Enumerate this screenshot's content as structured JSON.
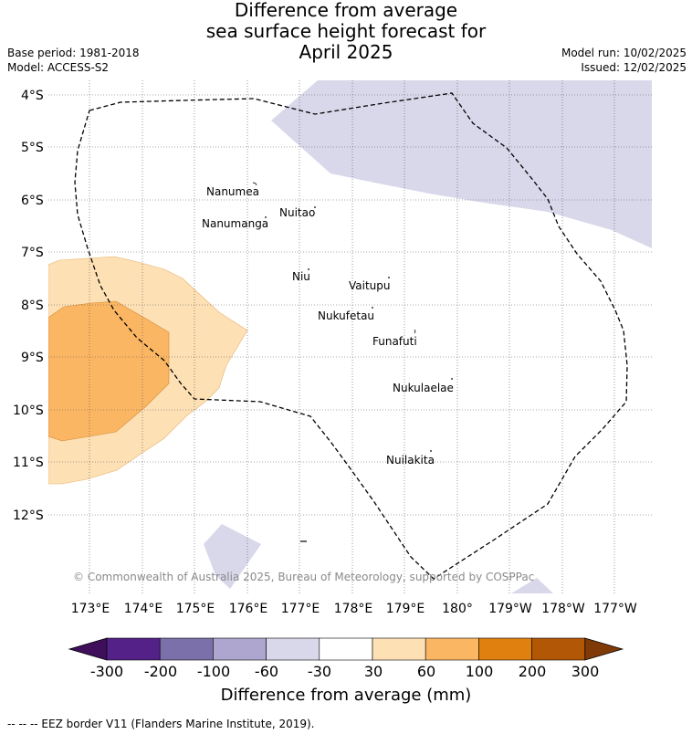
{
  "title": {
    "line1": "Difference from average",
    "line2": "sea surface height forecast for",
    "line3": "April 2025"
  },
  "meta": {
    "base_period": "Base period: 1981-2018",
    "model": "Model: ACCESS-S2",
    "model_run": "Model run: 10/02/2025",
    "issued": "Issued: 12/02/2025"
  },
  "map": {
    "lat_labels": [
      "4°S",
      "5°S",
      "6°S",
      "7°S",
      "8°S",
      "9°S",
      "10°S",
      "11°S",
      "12°S"
    ],
    "lon_labels": [
      "173°E",
      "174°E",
      "175°E",
      "176°E",
      "177°E",
      "178°E",
      "179°E",
      "180°",
      "179°W",
      "178°W",
      "177°W"
    ],
    "islands": [
      {
        "name": "Nanumea"
      },
      {
        "name": "Nuitao"
      },
      {
        "name": "Nanumanga"
      },
      {
        "name": "Niu"
      },
      {
        "name": "Vaitupu"
      },
      {
        "name": "Nukufetau"
      },
      {
        "name": "Funafuti"
      },
      {
        "name": "Nukulaelae"
      },
      {
        "name": "Nuilakita"
      }
    ],
    "copyright": "© Commonwealth of Australia 2025, Bureau of Meteorology, supported by COSPPac",
    "colors": {
      "neg_30_60": "#d8d8ea",
      "pos_30_60": "#fde0b4",
      "pos_60_100": "#fbb663"
    }
  },
  "colorbar": {
    "label": "Difference from average (mm)",
    "ticks": [
      "-300",
      "-200",
      "-100",
      "-60",
      "-30",
      "30",
      "60",
      "100",
      "200",
      "300"
    ],
    "colors": [
      "#3f0f5b",
      "#532187",
      "#7c70aa",
      "#aea6cf",
      "#d8d8ea",
      "#ffffff",
      "#fde0b4",
      "#fbb663",
      "#e0810f",
      "#b25706",
      "#7f3a08"
    ]
  },
  "footer": {
    "text": "--  --  -- EEZ border V11 (Flanders Marine Institute, 2019)."
  }
}
